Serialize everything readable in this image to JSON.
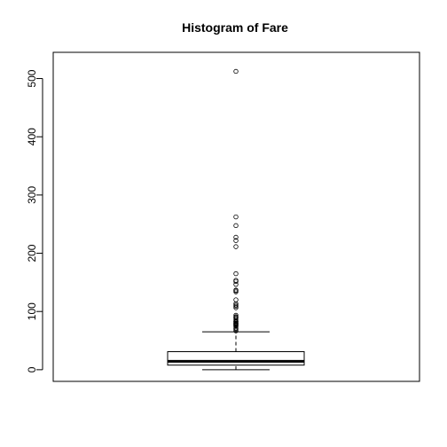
{
  "chart_data": {
    "type": "boxplot",
    "title": "Histogram of Fare",
    "xlabel": "",
    "ylabel": "",
    "ylim": [
      -20,
      545
    ],
    "yticks": [
      0,
      100,
      200,
      300,
      400,
      500
    ],
    "grid": false,
    "legend": "none",
    "box": {
      "min": 0,
      "q1": 7.9,
      "median": 14.45,
      "q3": 31,
      "whisker_high": 65
    },
    "outliers": [
      66.6,
      69.55,
      71,
      73.5,
      75.25,
      76.3,
      76.7,
      77.3,
      78.3,
      79.2,
      79.65,
      80,
      81.85,
      82.2,
      83.2,
      83.5,
      86.5,
      89.1,
      90,
      91.1,
      93.5,
      106.4,
      108.9,
      110.9,
      113.3,
      120,
      133.7,
      135.6,
      136.8,
      146.5,
      151.6,
      153.5,
      164.9,
      211.3,
      221.8,
      227.5,
      247.5,
      262.4,
      512.3
    ]
  }
}
